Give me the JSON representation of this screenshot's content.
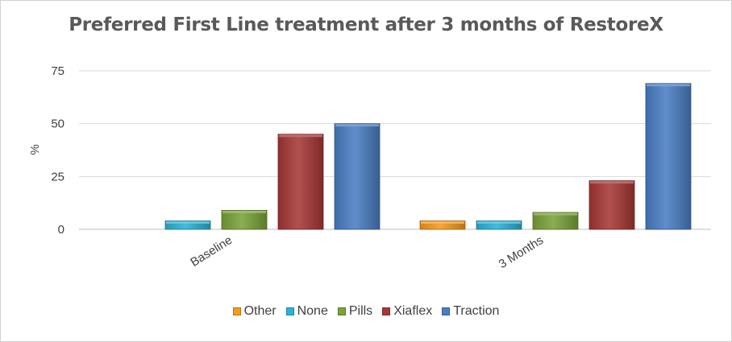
{
  "chart_data": {
    "type": "bar",
    "title": "Preferred First Line treatment after 3 months of RestoreX",
    "ylabel": "%",
    "xlabel": "",
    "categories": [
      "Baseline",
      "3 Months"
    ],
    "ylim": [
      0,
      75
    ],
    "yticks": [
      0,
      25,
      50,
      75
    ],
    "grid": true,
    "legend_position": "bottom",
    "series": [
      {
        "name": "Other",
        "color": "#f79a1e",
        "values": [
          0,
          4
        ]
      },
      {
        "name": "None",
        "color": "#2bb3d6",
        "values": [
          4,
          4
        ]
      },
      {
        "name": "Pills",
        "color": "#7aa33a",
        "values": [
          9,
          8
        ]
      },
      {
        "name": "Xiaflex",
        "color": "#a83836",
        "values": [
          45,
          23
        ]
      },
      {
        "name": "Traction",
        "color": "#4a7fc4",
        "values": [
          50,
          69
        ]
      }
    ]
  }
}
